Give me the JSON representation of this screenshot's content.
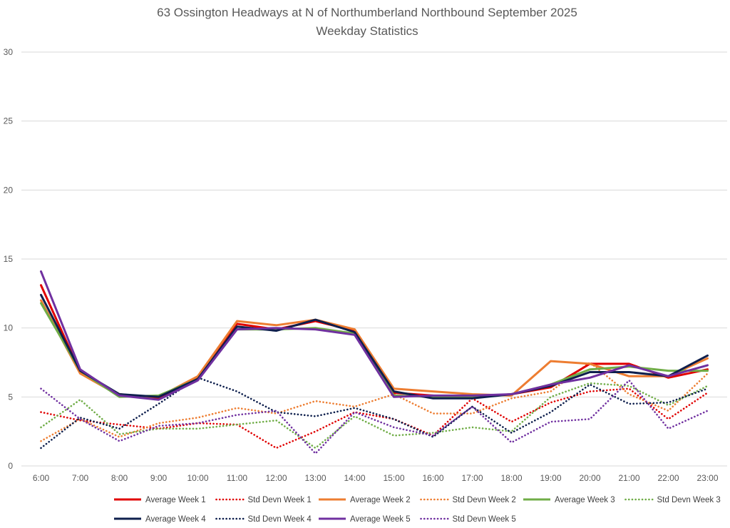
{
  "chart_data": {
    "type": "line",
    "title": "63 Ossington Headways at N of Northumberland Northbound September 2025",
    "subtitle": "Weekday Statistics",
    "xlabel": "",
    "ylabel": "",
    "ylim": [
      0,
      30
    ],
    "yticks": [
      0,
      5,
      10,
      15,
      20,
      25,
      30
    ],
    "grid": true,
    "legend_position": "bottom",
    "categories": [
      "6:00",
      "7:00",
      "8:00",
      "9:00",
      "10:00",
      "11:00",
      "12:00",
      "13:00",
      "14:00",
      "15:00",
      "16:00",
      "17:00",
      "18:00",
      "19:00",
      "20:00",
      "21:00",
      "22:00",
      "23:00"
    ],
    "series": [
      {
        "name": "Average Week 1",
        "color": "#e00000",
        "style": "solid",
        "values": [
          13.1,
          6.8,
          5.2,
          4.9,
          6.4,
          10.3,
          9.9,
          10.5,
          9.8,
          5.3,
          5.1,
          5.0,
          5.2,
          5.7,
          7.4,
          7.4,
          6.4,
          7.0
        ]
      },
      {
        "name": "Std Devn Week 1",
        "color": "#e00000",
        "style": "dotted",
        "values": [
          3.9,
          3.3,
          3.0,
          2.7,
          3.1,
          3.0,
          1.3,
          2.5,
          3.9,
          3.4,
          2.2,
          4.9,
          3.2,
          4.6,
          5.4,
          5.6,
          3.4,
          5.3
        ]
      },
      {
        "name": "Average Week 2",
        "color": "#ed7d31",
        "style": "solid",
        "values": [
          12.0,
          6.7,
          5.1,
          5.0,
          6.5,
          10.5,
          10.2,
          10.6,
          9.9,
          5.6,
          5.4,
          5.2,
          5.1,
          7.6,
          7.4,
          6.5,
          6.5,
          7.8
        ]
      },
      {
        "name": "Std Devn Week 2",
        "color": "#ed7d31",
        "style": "dotted",
        "values": [
          1.8,
          3.4,
          2.1,
          3.1,
          3.5,
          4.2,
          3.8,
          4.7,
          4.3,
          5.2,
          3.8,
          3.8,
          4.9,
          5.4,
          7.5,
          5.2,
          4.0,
          6.7
        ]
      },
      {
        "name": "Average Week 3",
        "color": "#70ad47",
        "style": "solid",
        "values": [
          11.8,
          6.9,
          5.0,
          5.1,
          6.3,
          9.9,
          9.9,
          10.0,
          9.6,
          5.1,
          5.0,
          5.0,
          5.2,
          5.9,
          7.0,
          7.2,
          6.9,
          6.9
        ]
      },
      {
        "name": "Std Devn Week 3",
        "color": "#70ad47",
        "style": "dotted",
        "values": [
          2.8,
          4.8,
          2.3,
          2.7,
          2.7,
          3.0,
          3.3,
          1.3,
          3.6,
          2.2,
          2.4,
          2.8,
          2.5,
          5.0,
          6.0,
          5.8,
          4.4,
          5.8
        ]
      },
      {
        "name": "Average Week 4",
        "color": "#0e1f4d",
        "style": "solid",
        "values": [
          12.4,
          6.9,
          5.2,
          5.0,
          6.3,
          10.1,
          9.8,
          10.6,
          9.7,
          5.4,
          4.9,
          4.9,
          5.2,
          5.8,
          6.8,
          6.8,
          6.5,
          8.0
        ]
      },
      {
        "name": "Std Devn Week 4",
        "color": "#0e1f4d",
        "style": "dotted",
        "values": [
          1.3,
          3.5,
          2.7,
          4.5,
          6.4,
          5.4,
          3.9,
          3.6,
          4.2,
          3.4,
          2.1,
          4.3,
          2.4,
          3.9,
          5.9,
          4.5,
          4.6,
          5.6
        ]
      },
      {
        "name": "Average Week 5",
        "color": "#7030a0",
        "style": "solid",
        "values": [
          14.1,
          7.0,
          5.1,
          4.8,
          6.2,
          9.9,
          10.0,
          9.9,
          9.5,
          5.0,
          5.1,
          5.1,
          5.2,
          5.9,
          6.4,
          7.3,
          6.5,
          7.3
        ]
      },
      {
        "name": "Std Devn Week 5",
        "color": "#7030a0",
        "style": "dotted",
        "values": [
          5.6,
          3.4,
          1.8,
          2.9,
          3.1,
          3.7,
          4.0,
          0.9,
          3.9,
          2.8,
          2.2,
          4.3,
          1.7,
          3.2,
          3.4,
          6.2,
          2.7,
          4.0
        ]
      }
    ]
  }
}
